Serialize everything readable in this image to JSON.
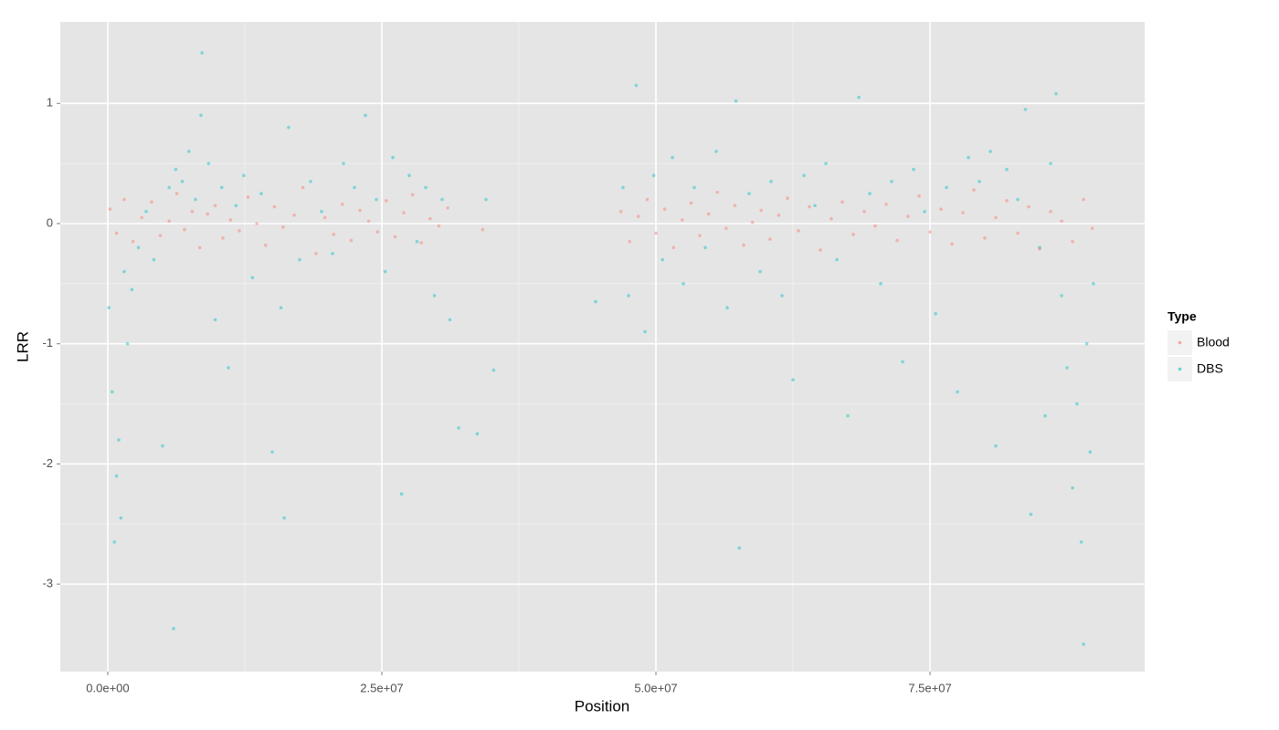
{
  "chart_data": {
    "type": "scatter",
    "x_label": "Position",
    "y_label": "LRR",
    "legend_title": "Type",
    "legend_position": "right",
    "grid": true,
    "xlim": [
      -4330000,
      94580000
    ],
    "xticks": [
      {
        "value": 0,
        "label": "0.0e+00"
      },
      {
        "value": 25000000,
        "label": "2.5e+07"
      },
      {
        "value": 50000000,
        "label": "5.0e+07"
      },
      {
        "value": 75000000,
        "label": "7.5e+07"
      }
    ],
    "ylim": [
      -3.728,
      1.678
    ],
    "yticks": [
      -3,
      -2,
      -1,
      0,
      1
    ],
    "series": [
      {
        "name": "Blood",
        "color": "#F8766D",
        "x": [
          200000,
          800000,
          1500000,
          2300000,
          3100000,
          4000000,
          4800000,
          5600000,
          6300000,
          7000000,
          7700000,
          8400000,
          9100000,
          9800000,
          10500000,
          11200000,
          12000000,
          12800000,
          13600000,
          14400000,
          15200000,
          16000000,
          17000000,
          17800000,
          19000000,
          19800000,
          20600000,
          21400000,
          22200000,
          23000000,
          23800000,
          24600000,
          25400000,
          26200000,
          27000000,
          27800000,
          28600000,
          29400000,
          30200000,
          31000000,
          34200000,
          46800000,
          47600000,
          48400000,
          49200000,
          50000000,
          50800000,
          51600000,
          52400000,
          53200000,
          54000000,
          54800000,
          55600000,
          56400000,
          57200000,
          58000000,
          58800000,
          59600000,
          60400000,
          61200000,
          62000000,
          63000000,
          64000000,
          65000000,
          66000000,
          67000000,
          68000000,
          69000000,
          70000000,
          71000000,
          72000000,
          73000000,
          74000000,
          75000000,
          76000000,
          77000000,
          78000000,
          79000000,
          80000000,
          81000000,
          82000000,
          83000000,
          84000000,
          85000000,
          86000000,
          87000000,
          88000000,
          89000000,
          89800000
        ],
        "values": [
          0.12,
          -0.08,
          0.2,
          -0.15,
          0.05,
          0.18,
          -0.1,
          0.02,
          0.25,
          -0.05,
          0.1,
          -0.2,
          0.08,
          0.15,
          -0.12,
          0.03,
          -0.06,
          0.22,
          0.0,
          -0.18,
          0.14,
          -0.03,
          0.07,
          0.3,
          -0.25,
          0.05,
          -0.09,
          0.16,
          -0.14,
          0.11,
          0.02,
          -0.07,
          0.19,
          -0.11,
          0.09,
          0.24,
          -0.16,
          0.04,
          -0.02,
          0.13,
          -0.05,
          0.1,
          -0.15,
          0.06,
          0.2,
          -0.08,
          0.12,
          -0.2,
          0.03,
          0.17,
          -0.1,
          0.08,
          0.26,
          -0.04,
          0.15,
          -0.18,
          0.01,
          0.11,
          -0.13,
          0.07,
          0.21,
          -0.06,
          0.14,
          -0.22,
          0.04,
          0.18,
          -0.09,
          0.1,
          -0.02,
          0.16,
          -0.14,
          0.06,
          0.23,
          -0.07,
          0.12,
          -0.17,
          0.09,
          0.28,
          -0.12,
          0.05,
          0.19,
          -0.08,
          0.14,
          -0.21,
          0.1,
          0.02,
          -0.15,
          0.2,
          -0.04
        ]
      },
      {
        "name": "DBS",
        "color": "#00BFC4",
        "x": [
          100000,
          400000,
          600000,
          800000,
          1000000,
          1200000,
          1500000,
          1800000,
          2200000,
          2800000,
          3500000,
          4200000,
          5000000,
          5600000,
          6200000,
          6800000,
          7400000,
          8000000,
          8600000,
          9200000,
          9800000,
          10400000,
          11000000,
          11700000,
          12400000,
          13200000,
          14000000,
          15000000,
          15800000,
          16100000,
          16500000,
          17500000,
          18500000,
          19500000,
          20500000,
          21500000,
          22500000,
          23500000,
          24500000,
          25300000,
          26000000,
          26800000,
          27500000,
          28200000,
          29000000,
          29800000,
          30500000,
          31200000,
          32000000,
          33700000,
          34500000,
          35200000,
          44500000,
          47000000,
          47500000,
          48200000,
          49000000,
          49800000,
          50600000,
          51500000,
          52500000,
          53500000,
          54500000,
          55500000,
          56500000,
          57300000,
          57600000,
          58500000,
          59500000,
          60500000,
          61500000,
          62500000,
          63500000,
          64500000,
          65500000,
          66500000,
          67500000,
          68500000,
          69500000,
          70500000,
          71500000,
          72500000,
          73500000,
          74500000,
          75500000,
          76500000,
          77500000,
          78500000,
          79500000,
          80500000,
          81000000,
          82000000,
          83000000,
          83700000,
          84200000,
          85000000,
          85500000,
          86000000,
          86500000,
          87000000,
          87500000,
          88000000,
          88400000,
          88800000,
          89000000,
          89300000,
          89600000,
          89900000,
          6000000,
          8500000
        ],
        "values": [
          -0.7,
          -1.4,
          -2.65,
          -2.1,
          -1.8,
          -2.45,
          -0.4,
          -1.0,
          -0.55,
          -0.2,
          0.1,
          -0.3,
          -1.85,
          0.3,
          0.45,
          0.35,
          0.6,
          0.2,
          1.42,
          0.5,
          -0.8,
          0.3,
          -1.2,
          0.15,
          0.4,
          -0.45,
          0.25,
          -1.9,
          -0.7,
          -2.45,
          0.8,
          -0.3,
          0.35,
          0.1,
          -0.25,
          0.5,
          0.3,
          0.9,
          0.2,
          -0.4,
          0.55,
          -2.25,
          0.4,
          -0.15,
          0.3,
          -0.6,
          0.2,
          -0.8,
          -1.7,
          -1.75,
          0.2,
          -1.22,
          -0.65,
          0.3,
          -0.6,
          1.15,
          -0.9,
          0.4,
          -0.3,
          0.55,
          -0.5,
          0.3,
          -0.2,
          0.6,
          -0.7,
          1.02,
          -2.7,
          0.25,
          -0.4,
          0.35,
          -0.6,
          -1.3,
          0.4,
          0.15,
          0.5,
          -0.3,
          -1.6,
          1.05,
          0.25,
          -0.5,
          0.35,
          -1.15,
          0.45,
          0.1,
          -0.75,
          0.3,
          -1.4,
          0.55,
          0.35,
          0.6,
          -1.85,
          0.45,
          0.2,
          0.95,
          -2.42,
          -0.2,
          -1.6,
          0.5,
          1.08,
          -0.6,
          -1.2,
          -2.2,
          -1.5,
          -2.65,
          -3.5,
          -1.0,
          -1.9,
          -0.5,
          -3.37,
          0.9
        ]
      }
    ]
  }
}
